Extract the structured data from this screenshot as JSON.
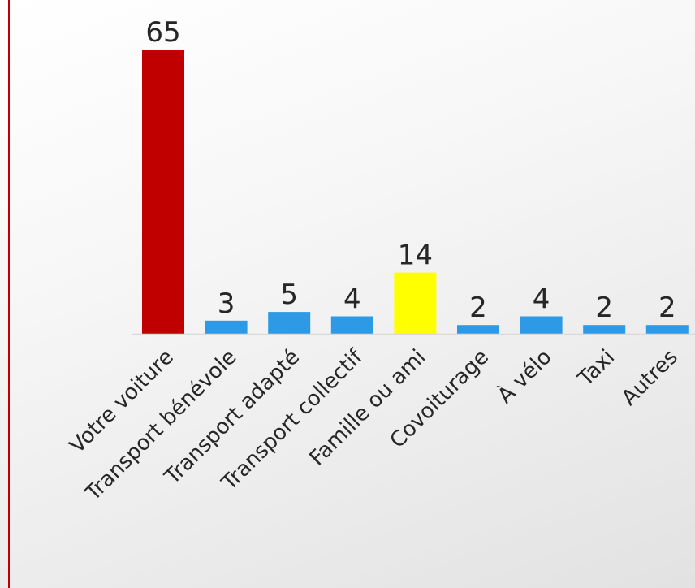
{
  "colors": {
    "left_rule": "#c00000",
    "axis": "#d9d9d9",
    "default_bar": "#2e9ae6"
  },
  "chart_data": {
    "type": "bar",
    "title": "",
    "xlabel": "",
    "ylabel": "",
    "grid": false,
    "legend": "none",
    "data_labels": true,
    "ylim": [
      0,
      65
    ],
    "categories": [
      "Votre voiture",
      "Transport bénévole",
      "Transport adapté",
      "Transport collectif",
      "Famille ou ami",
      "Covoiturage",
      "À vélo",
      "Taxi",
      "Autres"
    ],
    "values": [
      65,
      3,
      5,
      4,
      14,
      2,
      4,
      2,
      2
    ],
    "bar_colors": [
      "#c00000",
      "#2e9ae6",
      "#2e9ae6",
      "#2e9ae6",
      "#ffff00",
      "#2e9ae6",
      "#2e9ae6",
      "#2e9ae6",
      "#2e9ae6"
    ]
  }
}
